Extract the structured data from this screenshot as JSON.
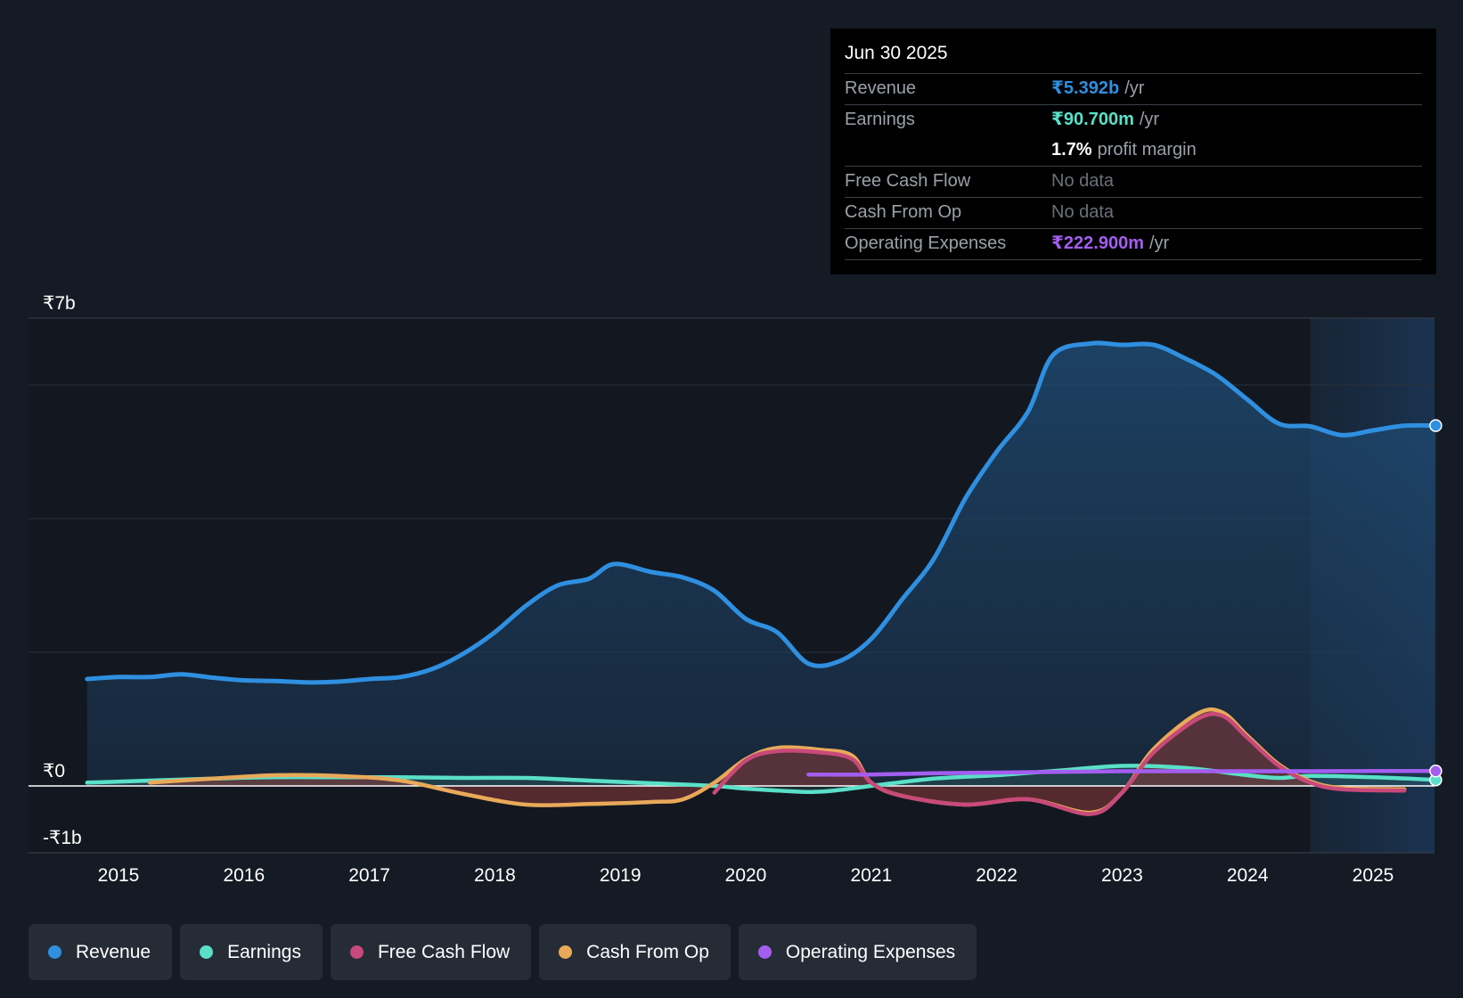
{
  "tooltip": {
    "date": "Jun 30 2025",
    "rows": [
      {
        "label": "Revenue",
        "value": "₹5.392b",
        "unit": "/yr",
        "color": "#2f8fe0"
      },
      {
        "label": "Earnings",
        "value": "₹90.700m",
        "unit": "/yr",
        "color": "#5ae0c8"
      },
      {
        "label": "",
        "value": "1.7%",
        "unit": "profit margin",
        "color": "#ffffff"
      },
      {
        "label": "Free Cash Flow",
        "value": "No data"
      },
      {
        "label": "Cash From Op",
        "value": "No data"
      },
      {
        "label": "Operating Expenses",
        "value": "₹222.900m",
        "unit": "/yr",
        "color": "#a35ef0"
      }
    ]
  },
  "legend": [
    {
      "label": "Revenue",
      "color": "#2f8fe0"
    },
    {
      "label": "Earnings",
      "color": "#5ae0c8"
    },
    {
      "label": "Free Cash Flow",
      "color": "#c8497a"
    },
    {
      "label": "Cash From Op",
      "color": "#e8a959"
    },
    {
      "label": "Operating Expenses",
      "color": "#a35ef0"
    }
  ],
  "chart_data": {
    "type": "area",
    "ylim": [
      -1,
      7
    ],
    "y_tick_labels": [
      {
        "value": 7,
        "label": "₹7b"
      },
      {
        "value": 0,
        "label": "₹0"
      },
      {
        "value": -1,
        "label": "-₹1b"
      }
    ],
    "gridlines": [
      7,
      6,
      4,
      2,
      0,
      -1
    ],
    "x_ticks": [
      2015,
      2016,
      2017,
      2018,
      2019,
      2020,
      2021,
      2022,
      2023,
      2024,
      2025
    ],
    "xlim": [
      2014.75,
      2025.5
    ],
    "forecast_start": 2024.5,
    "series": [
      {
        "name": "Revenue",
        "color": "#2f8fe0",
        "fill": true,
        "points": [
          [
            2014.75,
            1.6
          ],
          [
            2015.0,
            1.63
          ],
          [
            2015.25,
            1.63
          ],
          [
            2015.5,
            1.67
          ],
          [
            2015.75,
            1.62
          ],
          [
            2016.0,
            1.58
          ],
          [
            2016.25,
            1.57
          ],
          [
            2016.5,
            1.55
          ],
          [
            2016.75,
            1.56
          ],
          [
            2017.0,
            1.6
          ],
          [
            2017.25,
            1.63
          ],
          [
            2017.5,
            1.75
          ],
          [
            2017.75,
            1.98
          ],
          [
            2018.0,
            2.3
          ],
          [
            2018.25,
            2.7
          ],
          [
            2018.5,
            3.0
          ],
          [
            2018.75,
            3.1
          ],
          [
            2018.95,
            3.32
          ],
          [
            2019.25,
            3.2
          ],
          [
            2019.5,
            3.12
          ],
          [
            2019.75,
            2.92
          ],
          [
            2020.0,
            2.5
          ],
          [
            2020.25,
            2.3
          ],
          [
            2020.5,
            1.83
          ],
          [
            2020.75,
            1.87
          ],
          [
            2021.0,
            2.2
          ],
          [
            2021.25,
            2.8
          ],
          [
            2021.5,
            3.4
          ],
          [
            2021.75,
            4.3
          ],
          [
            2022.0,
            5.0
          ],
          [
            2022.25,
            5.6
          ],
          [
            2022.45,
            6.45
          ],
          [
            2022.75,
            6.62
          ],
          [
            2023.0,
            6.6
          ],
          [
            2023.25,
            6.6
          ],
          [
            2023.5,
            6.4
          ],
          [
            2023.75,
            6.15
          ],
          [
            2024.0,
            5.78
          ],
          [
            2024.25,
            5.42
          ],
          [
            2024.5,
            5.38
          ],
          [
            2024.75,
            5.25
          ],
          [
            2025.0,
            5.32
          ],
          [
            2025.25,
            5.39
          ],
          [
            2025.5,
            5.392
          ]
        ]
      },
      {
        "name": "Earnings",
        "color": "#5ae0c8",
        "fill": true,
        "points": [
          [
            2014.75,
            0.05
          ],
          [
            2015.25,
            0.08
          ],
          [
            2015.75,
            0.11
          ],
          [
            2016.25,
            0.13
          ],
          [
            2016.75,
            0.13
          ],
          [
            2017.25,
            0.13
          ],
          [
            2017.75,
            0.12
          ],
          [
            2018.25,
            0.12
          ],
          [
            2018.75,
            0.08
          ],
          [
            2019.25,
            0.04
          ],
          [
            2019.75,
            0.0
          ],
          [
            2020.0,
            -0.04
          ],
          [
            2020.5,
            -0.09
          ],
          [
            2020.75,
            -0.06
          ],
          [
            2021.0,
            0.0
          ],
          [
            2021.5,
            0.11
          ],
          [
            2022.0,
            0.16
          ],
          [
            2022.5,
            0.23
          ],
          [
            2023.0,
            0.3
          ],
          [
            2023.5,
            0.27
          ],
          [
            2024.0,
            0.16
          ],
          [
            2024.25,
            0.12
          ],
          [
            2024.5,
            0.15
          ],
          [
            2025.0,
            0.13
          ],
          [
            2025.5,
            0.0907
          ]
        ]
      },
      {
        "name": "Free Cash Flow",
        "color": "#c8497a",
        "fill": false,
        "points": [
          [
            2019.75,
            -0.1
          ],
          [
            2020.0,
            0.38
          ],
          [
            2020.25,
            0.52
          ],
          [
            2020.6,
            0.5
          ],
          [
            2020.85,
            0.4
          ],
          [
            2021.0,
            0.05
          ],
          [
            2021.25,
            -0.15
          ],
          [
            2021.75,
            -0.28
          ],
          [
            2022.25,
            -0.2
          ],
          [
            2022.75,
            -0.42
          ],
          [
            2023.0,
            -0.1
          ],
          [
            2023.25,
            0.5
          ],
          [
            2023.6,
            1.0
          ],
          [
            2023.8,
            1.05
          ],
          [
            2024.0,
            0.72
          ],
          [
            2024.25,
            0.3
          ],
          [
            2024.5,
            0.05
          ],
          [
            2024.75,
            -0.05
          ],
          [
            2025.25,
            -0.07
          ]
        ]
      },
      {
        "name": "Cash From Op",
        "color": "#e8a959",
        "fill": true,
        "points": [
          [
            2015.25,
            0.05
          ],
          [
            2015.75,
            0.11
          ],
          [
            2016.25,
            0.16
          ],
          [
            2016.75,
            0.15
          ],
          [
            2017.25,
            0.08
          ],
          [
            2017.75,
            -0.12
          ],
          [
            2018.25,
            -0.28
          ],
          [
            2018.75,
            -0.27
          ],
          [
            2019.25,
            -0.24
          ],
          [
            2019.5,
            -0.2
          ],
          [
            2019.75,
            0.05
          ],
          [
            2020.0,
            0.4
          ],
          [
            2020.25,
            0.57
          ],
          [
            2020.6,
            0.54
          ],
          [
            2020.85,
            0.45
          ],
          [
            2021.0,
            0.05
          ],
          [
            2021.25,
            -0.15
          ],
          [
            2021.75,
            -0.28
          ],
          [
            2022.25,
            -0.2
          ],
          [
            2022.75,
            -0.4
          ],
          [
            2023.0,
            -0.1
          ],
          [
            2023.25,
            0.55
          ],
          [
            2023.6,
            1.08
          ],
          [
            2023.8,
            1.1
          ],
          [
            2024.0,
            0.75
          ],
          [
            2024.25,
            0.32
          ],
          [
            2024.5,
            0.07
          ],
          [
            2024.75,
            -0.03
          ],
          [
            2025.25,
            -0.05
          ]
        ]
      },
      {
        "name": "Operating Expenses",
        "color": "#a35ef0",
        "fill": false,
        "points": [
          [
            2020.5,
            0.17
          ],
          [
            2021.0,
            0.17
          ],
          [
            2021.5,
            0.19
          ],
          [
            2022.0,
            0.2
          ],
          [
            2022.5,
            0.21
          ],
          [
            2023.0,
            0.22
          ],
          [
            2023.5,
            0.22
          ],
          [
            2024.0,
            0.22
          ],
          [
            2024.5,
            0.22
          ],
          [
            2025.0,
            0.223
          ],
          [
            2025.5,
            0.2229
          ]
        ]
      }
    ]
  }
}
